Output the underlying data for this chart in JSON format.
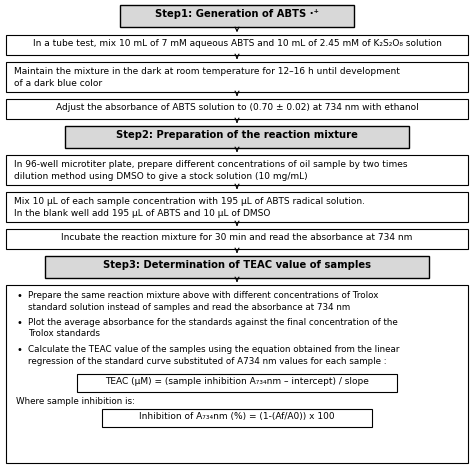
{
  "step1_text": "Step1: Generation of ABTS ·⁺",
  "step2_text": "Step2: Preparation of the reaction mixture",
  "step3_text": "Step3: Determination of TEAC value of samples",
  "box1_text": "In a tube test, mix 10 mL of 7 mM aqueous ABTS and 10 mL of 2.45 mM of K₂S₂O₈ solution",
  "box2_line1": "Maintain the mixture in the dark at room temperature for 12–16 h until development",
  "box2_line2": "of a dark blue color",
  "box3_text": "Adjust the absorbance of ABTS solution to (0.70 ± 0.02) at 734 nm with ethanol",
  "box4_line1": "In 96-well microtiter plate, prepare different concentrations of oil sample by two times",
  "box4_line2": "dilution method using DMSO to give a stock solution (10 mg/mL)",
  "box5_line1": "Mix 10 μL of each sample concentration with 195 μL of ABTS radical solution.",
  "box5_line2": "In the blank well add 195 μL of ABTS and 10 μL of DMSO",
  "box6_text": "Incubate the reaction mixture for 30 min and read the absorbance at 734 nm",
  "bullet1_line1": "Prepare the same reaction mixture above with different concentrations of Trolox",
  "bullet1_line2": "standard solution instead of samples and read the absorbance at 734 nm",
  "bullet2_line1": "Plot the average absorbance for the standards against the final concentration of the",
  "bullet2_line2": "Trolox standards",
  "bullet3_line1": "Calculate the TEAC value of the samples using the equation obtained from the linear",
  "bullet3_line2": "regression of the standard curve substituted of A734 nm values for each sample :",
  "formula1": "TEAC (μM) = (sample inhibition A₇₃₄nm – intercept) / slope",
  "where_text": "Where sample inhibition is:",
  "formula2": "Inhibition of A₇₃₄nm (%) = (1-(Af/A0)) x 100",
  "step_bg": "#d8d8d8",
  "box_bg": "white",
  "border_color": "black",
  "text_color": "black"
}
